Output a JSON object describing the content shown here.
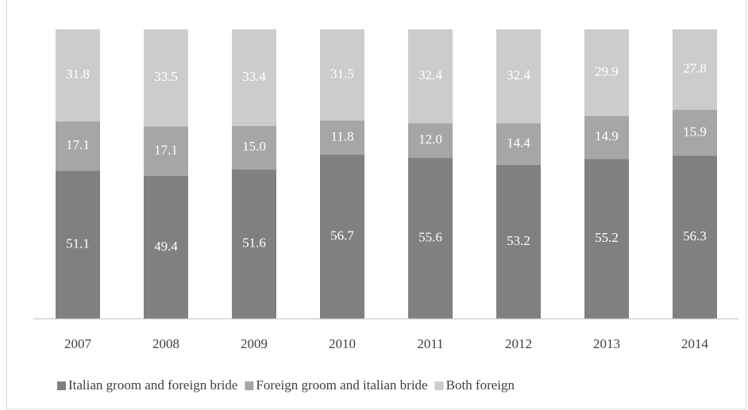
{
  "chart_data": {
    "type": "stacked-bar",
    "categories": [
      "2007",
      "2008",
      "2009",
      "2010",
      "2011",
      "2012",
      "2013",
      "2014"
    ],
    "series": [
      {
        "name": "Italian groom and foreign bride",
        "color": "#808080",
        "values": [
          51.1,
          49.4,
          51.6,
          56.7,
          55.6,
          53.2,
          55.2,
          56.3
        ],
        "value_labels": [
          "51.1",
          "49.4",
          "51.6",
          "56.7",
          "55.6",
          "53.2",
          "55.2",
          "56.3"
        ]
      },
      {
        "name": "Foreign groom and italian bride",
        "color": "#a6a6a6",
        "values": [
          17.1,
          17.1,
          15.0,
          11.8,
          12.0,
          14.4,
          14.9,
          15.9
        ],
        "value_labels": [
          "17.1",
          "17.1",
          "15.0",
          "11.8",
          "12.0",
          "14.4",
          "14.9",
          "15.9"
        ]
      },
      {
        "name": "Both foreign",
        "color": "#cccccc",
        "values": [
          31.8,
          33.5,
          33.4,
          31.5,
          32.4,
          32.4,
          29.9,
          27.8
        ],
        "value_labels": [
          "31.8",
          "33.5",
          "33.4",
          "31.5",
          "32.4",
          "32.4",
          "29.9",
          "27.8"
        ]
      }
    ],
    "ylim": [
      0,
      100
    ],
    "legend": "bottom"
  }
}
